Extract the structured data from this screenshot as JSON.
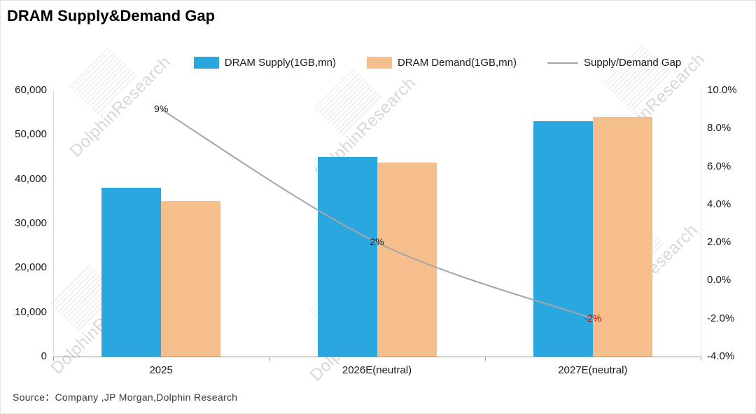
{
  "title": "DRAM Supply&Demand Gap",
  "source_note": "Source：Company ,JP Morgan,Dolphin Research",
  "watermark_text": "DolphinResearch",
  "legend": [
    {
      "label": "DRAM Supply(1GB,mn)",
      "swatch": "rect",
      "color": "#2BA7E0"
    },
    {
      "label": "DRAM Demand(1GB,mn)",
      "swatch": "rect",
      "color": "#F5BE8D"
    },
    {
      "label": "Supply/Demand Gap",
      "swatch": "line",
      "color": "#A6A6A6"
    }
  ],
  "chart_data": {
    "type": "bar",
    "subtype": "grouped bars with secondary-axis smooth line",
    "title": "DRAM Supply&Demand Gap",
    "categories": [
      "2025",
      "2026E(neutral)",
      "2027E(neutral)"
    ],
    "series": [
      {
        "name": "DRAM Supply(1GB,mn)",
        "type": "bar",
        "axis": "left",
        "color": "#2BA7E0",
        "values": [
          38000,
          45000,
          53000
        ]
      },
      {
        "name": "DRAM Demand(1GB,mn)",
        "type": "bar",
        "axis": "left",
        "color": "#F5BE8D",
        "values": [
          35000,
          43700,
          54000
        ]
      },
      {
        "name": "Supply/Demand Gap",
        "type": "line",
        "axis": "right",
        "color": "#A6A6A6",
        "values_pct": [
          9,
          2,
          -2
        ],
        "point_labels": [
          {
            "text": "9%",
            "color": "#1a1a1a"
          },
          {
            "text": "2%",
            "color": "#1a1a1a"
          },
          {
            "text": "-2%",
            "color": "#C00000"
          }
        ]
      }
    ],
    "left_axis": {
      "min": 0,
      "max": 60000,
      "step": 10000,
      "tick_labels": [
        "0",
        "10,000",
        "20,000",
        "30,000",
        "40,000",
        "50,000",
        "60,000"
      ]
    },
    "right_axis": {
      "min": -4,
      "max": 10,
      "step": 2,
      "tick_labels": [
        "-4.0%",
        "-2.0%",
        "0.0%",
        "2.0%",
        "4.0%",
        "6.0%",
        "8.0%",
        "10.0%"
      ]
    },
    "legend_position": "top",
    "grid": "off"
  }
}
